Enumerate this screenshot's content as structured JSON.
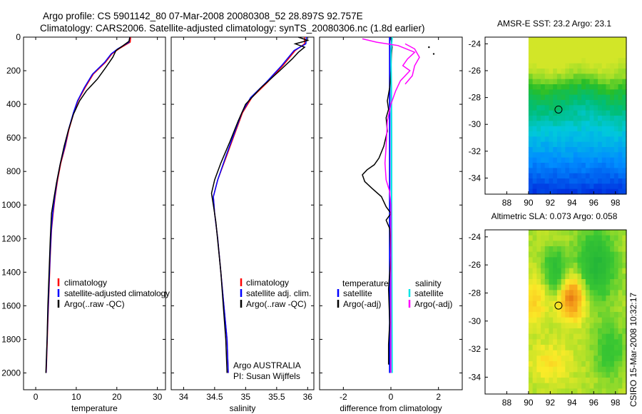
{
  "header": {
    "title_line1": "Argo profile: CS 5901142_80 07-Mar-2008 20080308_52 28.897S 92.757E",
    "title_line2": "Climatology: CARS2006. Satellite-adjusted climatology: synTS_20080306.nc (1.8d earlier)"
  },
  "colors": {
    "climatology": "#ff0000",
    "satellite": "#0000ff",
    "argo": "#000000",
    "salinity_satellite": "#00e5e5",
    "salinity_argo": "#ff00ff"
  },
  "chart_data": [
    {
      "id": "temperature",
      "type": "line",
      "xlabel": "temperature",
      "ylabel": "",
      "xlim": [
        -3,
        32
      ],
      "ylim": [
        0,
        2100
      ],
      "y_inverted": true,
      "xticks": [
        0,
        10,
        20,
        30
      ],
      "yticks": [
        0,
        200,
        400,
        600,
        800,
        1000,
        1200,
        1400,
        1600,
        1800,
        2000
      ],
      "legend": [
        "climatology",
        "satellite-adjusted climatology",
        "Argo(..raw -QC)"
      ],
      "series": [
        {
          "name": "climatology",
          "color": "#ff0000",
          "width": 1.5,
          "points": [
            [
              23.4,
              0
            ],
            [
              23.3,
              30
            ],
            [
              20.5,
              70
            ],
            [
              18.8,
              100
            ],
            [
              17.2,
              150
            ],
            [
              14.2,
              220
            ],
            [
              12.2,
              300
            ],
            [
              10.4,
              380
            ],
            [
              9.4,
              450
            ],
            [
              8.2,
              550
            ],
            [
              7.3,
              650
            ],
            [
              6.2,
              750
            ],
            [
              5.4,
              850
            ],
            [
              4.8,
              950
            ],
            [
              4.3,
              1050
            ],
            [
              3.9,
              1150
            ],
            [
              3.6,
              1300
            ],
            [
              3.3,
              1500
            ],
            [
              3.0,
              1700
            ],
            [
              2.6,
              2000
            ]
          ]
        },
        {
          "name": "satellite-adjusted climatology",
          "color": "#0000ff",
          "width": 1.5,
          "points": [
            [
              23.2,
              0
            ],
            [
              23.0,
              30
            ],
            [
              20.2,
              70
            ],
            [
              18.6,
              100
            ],
            [
              17.0,
              150
            ],
            [
              14.0,
              220
            ],
            [
              12.0,
              300
            ],
            [
              10.3,
              380
            ],
            [
              9.3,
              450
            ],
            [
              8.1,
              550
            ],
            [
              7.2,
              650
            ],
            [
              6.1,
              750
            ],
            [
              5.3,
              850
            ],
            [
              4.7,
              950
            ],
            [
              4.2,
              1050
            ],
            [
              3.85,
              1150
            ],
            [
              3.55,
              1300
            ],
            [
              3.25,
              1500
            ],
            [
              2.95,
              1700
            ],
            [
              2.55,
              2000
            ]
          ]
        },
        {
          "name": "Argo(..raw -QC)",
          "color": "#000000",
          "width": 1.5,
          "points": [
            [
              23.2,
              0
            ],
            [
              23.0,
              25
            ],
            [
              21.0,
              60
            ],
            [
              19.8,
              80
            ],
            [
              19.0,
              120
            ],
            [
              17.3,
              180
            ],
            [
              15.2,
              250
            ],
            [
              12.5,
              320
            ],
            [
              10.8,
              380
            ],
            [
              9.3,
              460
            ],
            [
              8.0,
              560
            ],
            [
              7.0,
              650
            ],
            [
              6.0,
              760
            ],
            [
              5.1,
              870
            ],
            [
              4.5,
              960
            ],
            [
              3.9,
              1050
            ],
            [
              3.6,
              1200
            ],
            [
              3.3,
              1400
            ],
            [
              3.0,
              1600
            ],
            [
              2.8,
              1800
            ],
            [
              2.5,
              2000
            ]
          ]
        }
      ]
    },
    {
      "id": "salinity",
      "type": "line",
      "xlabel": "salinity",
      "ylabel": "",
      "xlim": [
        33.8,
        36.1
      ],
      "ylim": [
        0,
        2100
      ],
      "y_inverted": true,
      "xticks": [
        34,
        34.5,
        35,
        35.5,
        36
      ],
      "yticks": [
        0,
        200,
        400,
        600,
        800,
        1000,
        1200,
        1400,
        1600,
        1800,
        2000
      ],
      "legend": [
        "climatology",
        "satellite adj. clim.",
        "Argo(..raw -QC)"
      ],
      "annotation": [
        "Argo AUSTRALIA",
        "PI: Susan Wijffels"
      ],
      "series": [
        {
          "name": "climatology",
          "color": "#ff0000",
          "width": 1.5,
          "points": [
            [
              35.95,
              0
            ],
            [
              35.95,
              40
            ],
            [
              35.8,
              80
            ],
            [
              35.6,
              170
            ],
            [
              35.35,
              270
            ],
            [
              35.1,
              360
            ],
            [
              34.95,
              450
            ],
            [
              34.85,
              550
            ],
            [
              34.7,
              700
            ],
            [
              34.55,
              850
            ],
            [
              34.48,
              950
            ],
            [
              34.5,
              1050
            ],
            [
              34.55,
              1200
            ],
            [
              34.6,
              1400
            ],
            [
              34.65,
              1600
            ],
            [
              34.7,
              1800
            ],
            [
              34.72,
              2000
            ]
          ]
        },
        {
          "name": "satellite adj. clim.",
          "color": "#0000ff",
          "width": 1.5,
          "points": [
            [
              35.98,
              0
            ],
            [
              35.97,
              40
            ],
            [
              35.78,
              80
            ],
            [
              35.58,
              170
            ],
            [
              35.33,
              270
            ],
            [
              35.08,
              360
            ],
            [
              34.94,
              450
            ],
            [
              34.84,
              550
            ],
            [
              34.69,
              700
            ],
            [
              34.55,
              850
            ],
            [
              34.48,
              950
            ],
            [
              34.5,
              1050
            ],
            [
              34.55,
              1200
            ],
            [
              34.6,
              1400
            ],
            [
              34.65,
              1600
            ],
            [
              34.7,
              1800
            ],
            [
              34.72,
              2000
            ]
          ]
        },
        {
          "name": "Argo(..raw -QC)",
          "color": "#000000",
          "width": 1.5,
          "points": [
            [
              35.85,
              0
            ],
            [
              36.0,
              20
            ],
            [
              35.8,
              40
            ],
            [
              35.95,
              60
            ],
            [
              35.85,
              90
            ],
            [
              35.75,
              130
            ],
            [
              35.55,
              200
            ],
            [
              35.25,
              300
            ],
            [
              35.0,
              400
            ],
            [
              34.88,
              500
            ],
            [
              34.75,
              620
            ],
            [
              34.6,
              750
            ],
            [
              34.5,
              850
            ],
            [
              34.45,
              930
            ],
            [
              34.48,
              1000
            ],
            [
              34.52,
              1100
            ],
            [
              34.56,
              1250
            ],
            [
              34.6,
              1400
            ],
            [
              34.64,
              1600
            ],
            [
              34.68,
              1800
            ],
            [
              34.7,
              2000
            ]
          ]
        }
      ]
    },
    {
      "id": "difference",
      "type": "line",
      "xlabel": "difference from climatology",
      "ylabel": "",
      "xlim": [
        -3,
        3
      ],
      "ylim": [
        0,
        2100
      ],
      "y_inverted": true,
      "xticks": [
        -2,
        0,
        2
      ],
      "yticks": [
        0,
        200,
        400,
        600,
        800,
        1000,
        1200,
        1400,
        1600,
        1800,
        2000
      ],
      "legend_headers": [
        "temperature",
        "salinity"
      ],
      "legend": [
        "satellite",
        "Argo(-adj)",
        "satellite",
        "Argo(-adj)"
      ],
      "series": [
        {
          "name": "temperature satellite",
          "color": "#0000ff",
          "width": 2,
          "points": [
            [
              -0.05,
              0
            ],
            [
              -0.05,
              300
            ],
            [
              -0.05,
              1000
            ],
            [
              -0.05,
              2000
            ]
          ]
        },
        {
          "name": "temperature Argo(-adj)",
          "color": "#000000",
          "width": 1.5,
          "points": [
            [
              0.0,
              0
            ],
            [
              0.05,
              60
            ],
            [
              0.02,
              100
            ],
            [
              0.0,
              200
            ],
            [
              -0.05,
              300
            ],
            [
              -0.15,
              380
            ],
            [
              -0.1,
              430
            ],
            [
              -0.2,
              480
            ],
            [
              -0.15,
              560
            ],
            [
              -0.3,
              650
            ],
            [
              -0.5,
              720
            ],
            [
              -0.7,
              760
            ],
            [
              -1.0,
              790
            ],
            [
              -1.2,
              820
            ],
            [
              -1.1,
              860
            ],
            [
              -0.8,
              900
            ],
            [
              -0.4,
              950
            ],
            [
              -0.2,
              1010
            ],
            [
              0.0,
              1050
            ],
            [
              -0.2,
              1090
            ],
            [
              -0.05,
              1140
            ],
            [
              0.0,
              1300
            ],
            [
              -0.1,
              1500
            ],
            [
              -0.05,
              1700
            ],
            [
              -0.1,
              1830
            ],
            [
              -0.1,
              1950
            ]
          ]
        },
        {
          "name": "salinity satellite",
          "color": "#00e5e5",
          "width": 2,
          "points": [
            [
              0.05,
              0
            ],
            [
              0.0,
              100
            ],
            [
              0.02,
              300
            ],
            [
              0.03,
              600
            ],
            [
              0.03,
              1000
            ],
            [
              0.05,
              2000
            ]
          ]
        },
        {
          "name": "salinity Argo(-adj)",
          "color": "#ff00ff",
          "width": 1.5,
          "points": [
            [
              -1.2,
              10
            ],
            [
              -0.6,
              30
            ],
            [
              0.3,
              50
            ],
            [
              1.0,
              90
            ],
            [
              0.7,
              130
            ],
            [
              0.5,
              170
            ],
            [
              0.8,
              200
            ],
            [
              0.4,
              260
            ],
            [
              0.2,
              320
            ],
            [
              0.0,
              400
            ],
            [
              -0.15,
              500
            ],
            [
              -0.2,
              650
            ],
            [
              -0.25,
              750
            ],
            [
              -0.2,
              850
            ],
            [
              -0.05,
              920
            ],
            [
              0.0,
              1000
            ],
            [
              0.0,
              2000
            ]
          ]
        },
        {
          "name": "salinity Argo(-adj) b",
          "color": "#ff00ff",
          "width": 1.5,
          "points": [
            [
              0.6,
              40
            ],
            [
              1.0,
              70
            ],
            [
              1.2,
              120
            ],
            [
              1.0,
              170
            ],
            [
              0.9,
              230
            ],
            [
              0.6,
              280
            ]
          ]
        }
      ],
      "markers": [
        {
          "color": "#000000",
          "points": [
            [
              1.8,
              100
            ],
            [
              1.6,
              60
            ]
          ]
        }
      ]
    },
    {
      "id": "sst_map",
      "type": "heatmap",
      "title": "AMSR-E SST: 23.2  Argo: 23.1",
      "xlim": [
        86,
        99
      ],
      "ylim": [
        -35.2,
        -23.5
      ],
      "xticks": [
        88,
        90,
        92,
        94,
        96,
        98
      ],
      "yticks": [
        -24,
        -26,
        -28,
        -30,
        -32,
        -34
      ],
      "data_xrange": [
        90,
        99
      ],
      "argo_position": [
        92.757,
        -28.897
      ],
      "palette": "sst"
    },
    {
      "id": "sla_map",
      "type": "heatmap",
      "title": "Altimetric SLA: 0.073  Argo: 0.058",
      "xlim": [
        86,
        99
      ],
      "ylim": [
        -35.2,
        -23.5
      ],
      "xticks": [
        88,
        90,
        92,
        94,
        96,
        98
      ],
      "yticks": [
        -24,
        -26,
        -28,
        -30,
        -32,
        -34
      ],
      "data_xrange": [
        90,
        99
      ],
      "argo_position": [
        92.757,
        -28.897
      ],
      "palette": "sla"
    }
  ],
  "footer": {
    "credit": "CSIRO 15-Mar-2008 10:32:17"
  }
}
